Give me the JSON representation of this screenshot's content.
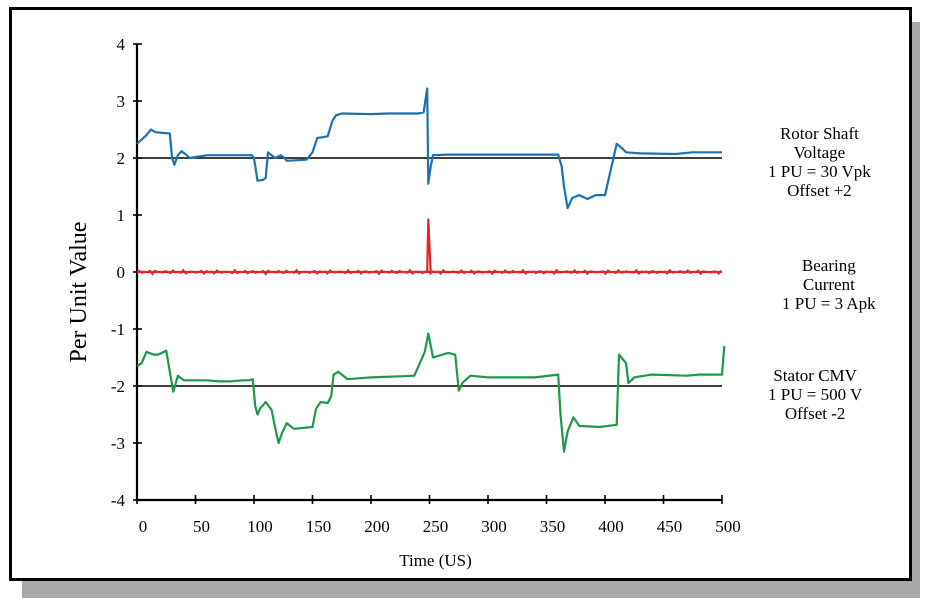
{
  "chart_data": {
    "type": "line",
    "title": "",
    "xlabel": "Time (US)",
    "ylabel": "Per Unit Value",
    "xlim": [
      0,
      500
    ],
    "ylim": [
      -4,
      4
    ],
    "x_ticks": [
      "0",
      "50",
      "100",
      "150",
      "200",
      "250",
      "300",
      "350",
      "400",
      "450",
      "500"
    ],
    "y_ticks": [
      "4",
      "3",
      "2",
      "1",
      "0",
      "-1",
      "-2",
      "-3",
      "-4"
    ],
    "grid": false,
    "reference_lines": [
      2,
      0,
      -2
    ],
    "series": [
      {
        "color": "#1b72b3",
        "points": [
          [
            0,
            2.25
          ],
          [
            8,
            2.4
          ],
          [
            12,
            2.5
          ],
          [
            16,
            2.45
          ],
          [
            28,
            2.43
          ],
          [
            30,
            2.0
          ],
          [
            32,
            1.88
          ],
          [
            35,
            2.05
          ],
          [
            38,
            2.12
          ],
          [
            42,
            2.06
          ],
          [
            45,
            2.0
          ],
          [
            60,
            2.05
          ],
          [
            80,
            2.05
          ],
          [
            98,
            2.05
          ],
          [
            100,
            2.0
          ],
          [
            103,
            1.6
          ],
          [
            108,
            1.62
          ],
          [
            110,
            1.65
          ],
          [
            112,
            2.1
          ],
          [
            118,
            2.0
          ],
          [
            123,
            2.05
          ],
          [
            126,
            2.0
          ],
          [
            128,
            1.95
          ],
          [
            145,
            1.97
          ],
          [
            150,
            2.1
          ],
          [
            154,
            2.35
          ],
          [
            163,
            2.38
          ],
          [
            167,
            2.65
          ],
          [
            170,
            2.75
          ],
          [
            175,
            2.78
          ],
          [
            200,
            2.77
          ],
          [
            215,
            2.78
          ],
          [
            240,
            2.78
          ],
          [
            245,
            2.8
          ],
          [
            248,
            3.22
          ],
          [
            249,
            1.55
          ],
          [
            251,
            1.85
          ],
          [
            253,
            2.05
          ],
          [
            265,
            2.06
          ],
          [
            300,
            2.06
          ],
          [
            360,
            2.06
          ],
          [
            363,
            1.85
          ],
          [
            365,
            1.5
          ],
          [
            368,
            1.12
          ],
          [
            372,
            1.3
          ],
          [
            378,
            1.35
          ],
          [
            385,
            1.28
          ],
          [
            392,
            1.35
          ],
          [
            400,
            1.35
          ],
          [
            410,
            2.25
          ],
          [
            413,
            2.2
          ],
          [
            418,
            2.1
          ],
          [
            430,
            2.08
          ],
          [
            460,
            2.07
          ],
          [
            475,
            2.1
          ],
          [
            500,
            2.1
          ]
        ]
      },
      {
        "color": "#e0262b",
        "points": [
          [
            0,
            0
          ],
          [
            248,
            0
          ],
          [
            249,
            0.92
          ],
          [
            251,
            0.0
          ],
          [
            500,
            0
          ]
        ]
      },
      {
        "color": "#1a9a4a",
        "points": [
          [
            0,
            -1.65
          ],
          [
            4,
            -1.6
          ],
          [
            8,
            -1.4
          ],
          [
            14,
            -1.45
          ],
          [
            18,
            -1.45
          ],
          [
            25,
            -1.38
          ],
          [
            28,
            -1.75
          ],
          [
            31,
            -2.1
          ],
          [
            35,
            -1.82
          ],
          [
            40,
            -1.9
          ],
          [
            60,
            -1.9
          ],
          [
            70,
            -1.92
          ],
          [
            80,
            -1.92
          ],
          [
            90,
            -1.9
          ],
          [
            96,
            -1.9
          ],
          [
            99,
            -1.88
          ],
          [
            101,
            -2.35
          ],
          [
            103,
            -2.5
          ],
          [
            105,
            -2.4
          ],
          [
            110,
            -2.28
          ],
          [
            115,
            -2.42
          ],
          [
            119,
            -2.82
          ],
          [
            121,
            -3.0
          ],
          [
            124,
            -2.82
          ],
          [
            128,
            -2.65
          ],
          [
            134,
            -2.75
          ],
          [
            150,
            -2.72
          ],
          [
            153,
            -2.4
          ],
          [
            157,
            -2.28
          ],
          [
            163,
            -2.3
          ],
          [
            166,
            -2.18
          ],
          [
            168,
            -1.8
          ],
          [
            172,
            -1.75
          ],
          [
            180,
            -1.88
          ],
          [
            200,
            -1.85
          ],
          [
            225,
            -1.83
          ],
          [
            237,
            -1.82
          ],
          [
            246,
            -1.4
          ],
          [
            249,
            -1.08
          ],
          [
            253,
            -1.5
          ],
          [
            266,
            -1.42
          ],
          [
            272,
            -1.45
          ],
          [
            275,
            -2.08
          ],
          [
            278,
            -1.95
          ],
          [
            285,
            -1.82
          ],
          [
            300,
            -1.85
          ],
          [
            340,
            -1.85
          ],
          [
            360,
            -1.8
          ],
          [
            362,
            -2.5
          ],
          [
            365,
            -3.15
          ],
          [
            368,
            -2.8
          ],
          [
            373,
            -2.55
          ],
          [
            378,
            -2.7
          ],
          [
            395,
            -2.72
          ],
          [
            410,
            -2.68
          ],
          [
            412,
            -1.45
          ],
          [
            418,
            -1.6
          ],
          [
            420,
            -1.95
          ],
          [
            425,
            -1.85
          ],
          [
            440,
            -1.8
          ],
          [
            470,
            -1.82
          ],
          [
            480,
            -1.8
          ],
          [
            500,
            -1.8
          ],
          [
            502,
            -1.3
          ]
        ]
      }
    ]
  },
  "annotations": [
    {
      "lines": [
        "Rotor Shaft",
        "Voltage",
        "1 PU = 30 Vpk",
        "Offset +2"
      ]
    },
    {
      "lines": [
        "Bearing",
        "Current",
        "1 PU = 3 Apk"
      ]
    },
    {
      "lines": [
        "Stator CMV",
        "1 PU = 500 V",
        "Offset -2"
      ]
    }
  ]
}
